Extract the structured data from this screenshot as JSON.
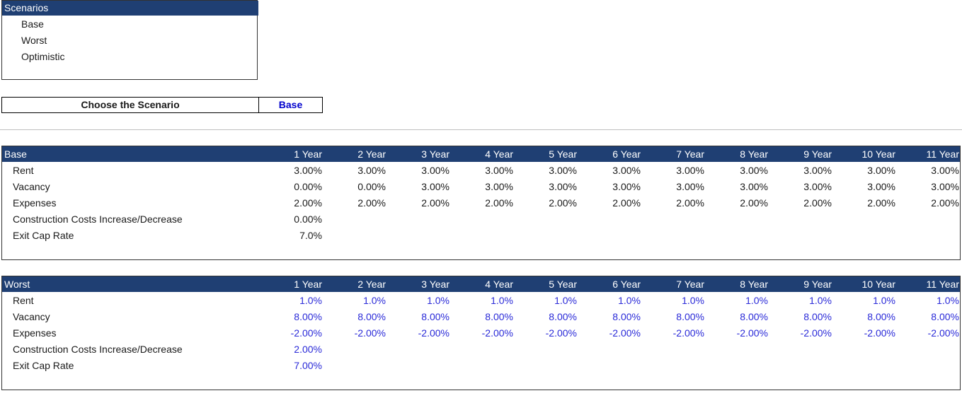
{
  "scenarios_list": {
    "title": "Scenarios",
    "options": [
      "Base",
      "Worst",
      "Optimistic"
    ]
  },
  "chooser": {
    "label": "Choose the Scenario",
    "value": "Base"
  },
  "years": [
    "1 Year",
    "2 Year",
    "3 Year",
    "4 Year",
    "5 Year",
    "6 Year",
    "7 Year",
    "8 Year",
    "9 Year",
    "10 Year",
    "11 Year"
  ],
  "tables": [
    {
      "name": "Base",
      "rows": [
        {
          "label": "Rent",
          "values": [
            "3.00%",
            "3.00%",
            "3.00%",
            "3.00%",
            "3.00%",
            "3.00%",
            "3.00%",
            "3.00%",
            "3.00%",
            "3.00%",
            "3.00%"
          ]
        },
        {
          "label": "Vacancy",
          "values": [
            "0.00%",
            "0.00%",
            "3.00%",
            "3.00%",
            "3.00%",
            "3.00%",
            "3.00%",
            "3.00%",
            "3.00%",
            "3.00%",
            "3.00%"
          ]
        },
        {
          "label": "Expenses",
          "values": [
            "2.00%",
            "2.00%",
            "2.00%",
            "2.00%",
            "2.00%",
            "2.00%",
            "2.00%",
            "2.00%",
            "2.00%",
            "2.00%",
            "2.00%"
          ]
        },
        {
          "label": "Construction Costs Increase/Decrease",
          "values": [
            "0.00%"
          ]
        },
        {
          "label": "Exit Cap Rate",
          "values": [
            "7.0%"
          ]
        }
      ]
    },
    {
      "name": "Worst",
      "rows": [
        {
          "label": "Rent",
          "values": [
            "1.0%",
            "1.0%",
            "1.0%",
            "1.0%",
            "1.0%",
            "1.0%",
            "1.0%",
            "1.0%",
            "1.0%",
            "1.0%",
            "1.0%"
          ]
        },
        {
          "label": "Vacancy",
          "values": [
            "8.00%",
            "8.00%",
            "8.00%",
            "8.00%",
            "8.00%",
            "8.00%",
            "8.00%",
            "8.00%",
            "8.00%",
            "8.00%",
            "8.00%"
          ]
        },
        {
          "label": "Expenses",
          "values": [
            "-2.00%",
            "-2.00%",
            "-2.00%",
            "-2.00%",
            "-2.00%",
            "-2.00%",
            "-2.00%",
            "-2.00%",
            "-2.00%",
            "-2.00%",
            "-2.00%"
          ]
        },
        {
          "label": "Construction Costs Increase/Decrease",
          "values": [
            "2.00%"
          ]
        },
        {
          "label": "Exit Cap Rate",
          "values": [
            "7.00%"
          ]
        }
      ]
    }
  ],
  "colors": {
    "header_fill": "#1f3f73",
    "input_blue": "#2a2ad8",
    "chooser_blue": "#0000cc"
  }
}
